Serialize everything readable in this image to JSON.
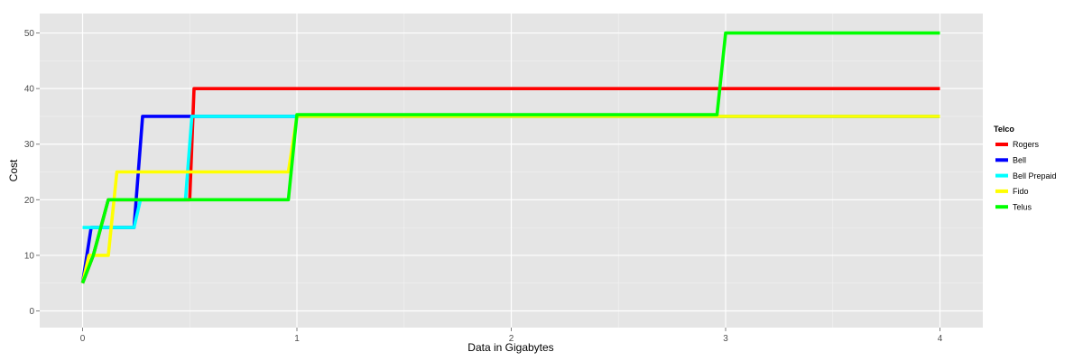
{
  "chart_data": {
    "type": "line",
    "title": "",
    "xlabel": "Data in Gigabytes",
    "ylabel": "Cost",
    "xlim": [
      -0.2,
      4.2
    ],
    "ylim": [
      -3.0,
      53.5
    ],
    "x_ticks": [
      0,
      1,
      2,
      3,
      4
    ],
    "y_ticks": [
      0,
      10,
      20,
      30,
      40,
      50
    ],
    "grid": true,
    "legend": {
      "title": "Telco",
      "placement": "right"
    },
    "series": [
      {
        "name": "Rogers",
        "color": "#FF0000",
        "points": [
          [
            0,
            5
          ],
          [
            0.05,
            10
          ],
          [
            0.12,
            20
          ],
          [
            0.5,
            20
          ],
          [
            0.52,
            40
          ],
          [
            4,
            40
          ]
        ]
      },
      {
        "name": "Bell",
        "color": "#0000FF",
        "points": [
          [
            0,
            5
          ],
          [
            0.04,
            15
          ],
          [
            0.24,
            15
          ],
          [
            0.28,
            35
          ],
          [
            4,
            35
          ]
        ]
      },
      {
        "name": "Bell Prepaid",
        "color": "#00FFFF",
        "points": [
          [
            0,
            15
          ],
          [
            0.24,
            15
          ],
          [
            0.27,
            20
          ],
          [
            0.48,
            20
          ],
          [
            0.51,
            35
          ],
          [
            4,
            35
          ]
        ]
      },
      {
        "name": "Fido",
        "color": "#FFFF00",
        "points": [
          [
            0,
            5
          ],
          [
            0.03,
            10
          ],
          [
            0.12,
            10
          ],
          [
            0.16,
            25
          ],
          [
            0.96,
            25
          ],
          [
            1.0,
            35
          ],
          [
            4,
            35
          ]
        ]
      },
      {
        "name": "Telus",
        "color": "#00FF00",
        "points": [
          [
            0,
            5
          ],
          [
            0.05,
            10
          ],
          [
            0.12,
            20
          ],
          [
            0.96,
            20
          ],
          [
            1.0,
            35.3
          ],
          [
            2.96,
            35.3
          ],
          [
            3.0,
            50
          ],
          [
            4,
            50
          ]
        ]
      }
    ]
  }
}
